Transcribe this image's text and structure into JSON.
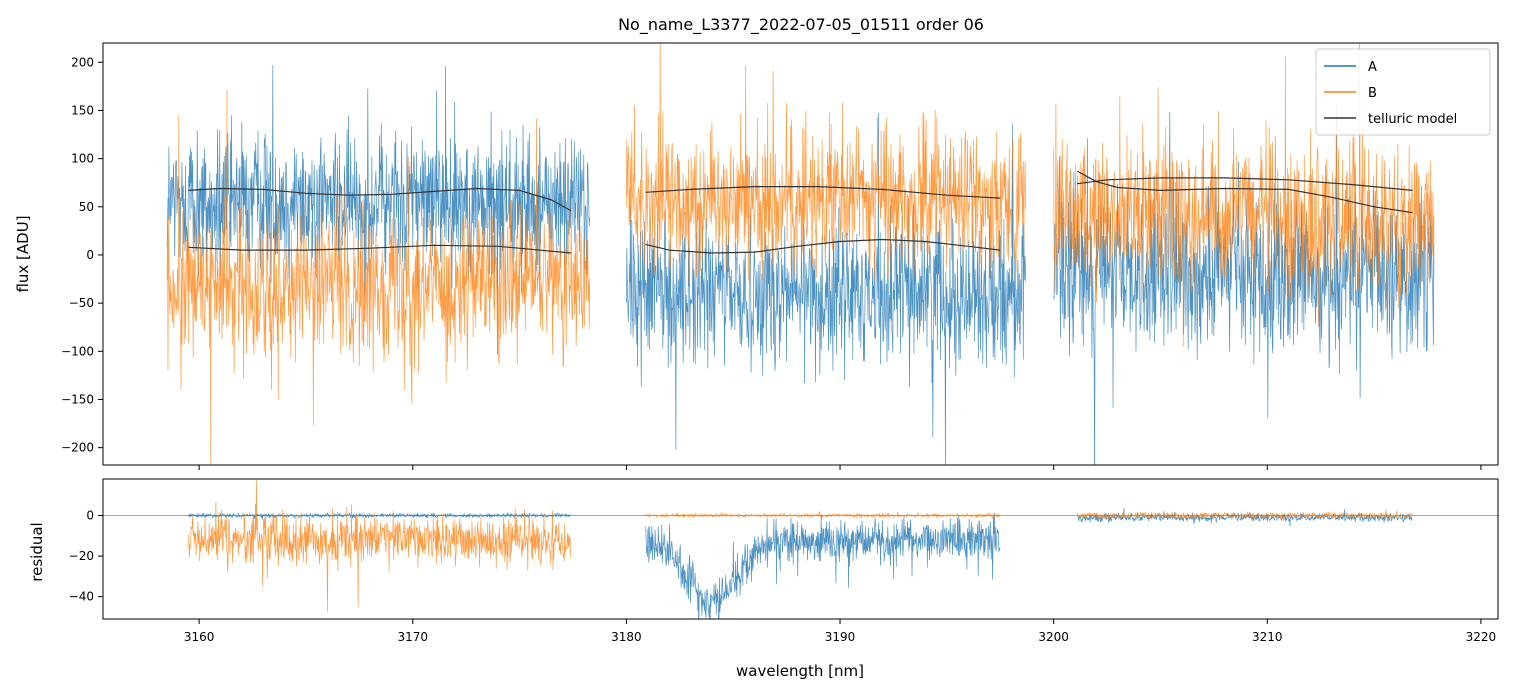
{
  "chart_data": {
    "type": "line",
    "title": "No_name_L3377_2022-07-05_01511  order 06",
    "xlabel": "wavelength [nm]",
    "xlim": [
      3155.5,
      3220.8
    ],
    "xticks": [
      3160,
      3170,
      3180,
      3190,
      3200,
      3210,
      3220
    ],
    "xtick_labels": [
      "3160",
      "3170",
      "3180",
      "3190",
      "3200",
      "3210",
      "3220"
    ],
    "colors": {
      "A": "#1f77b4",
      "B": "#ff7f0e",
      "telluric": "#333333",
      "zero": "#888888"
    },
    "legend": {
      "position": "upper right",
      "entries": [
        "A",
        "B",
        "telluric model"
      ]
    },
    "panels": [
      {
        "name": "flux",
        "ylabel": "flux [ADU]",
        "ylim": [
          -218,
          220
        ],
        "yticks": [
          200,
          150,
          100,
          50,
          0,
          -50,
          -100,
          -150,
          -200
        ],
        "ytick_labels": [
          "200",
          "150",
          "100",
          "50",
          "0",
          "−50",
          "−100",
          "−150",
          "−200"
        ],
        "segments": [
          {
            "x_start": 3158.5,
            "x_end": 3178.3,
            "A": {
              "center": 55,
              "spread": 105
            },
            "B": {
              "center": -30,
              "spread": 110
            }
          },
          {
            "x_start": 3180.0,
            "x_end": 3198.7,
            "A": {
              "center": -40,
              "spread": 110
            },
            "B": {
              "center": 60,
              "spread": 110
            }
          },
          {
            "x_start": 3200.0,
            "x_end": 3217.8,
            "A": {
              "center": -20,
              "spread": 120
            },
            "B": {
              "center": 40,
              "spread": 115
            }
          }
        ],
        "telluric": [
          {
            "x": [
              3159.5,
              3161,
              3163,
              3165,
              3167,
              3169,
              3171,
              3173,
              3175,
              3176.5,
              3177.4
            ],
            "y": [
              67,
              69,
              68,
              64,
              62,
              63,
              66,
              69,
              67,
              57,
              46
            ]
          },
          {
            "x": [
              3159.5,
              3162,
              3165,
              3168,
              3171,
              3174,
              3177.4
            ],
            "y": [
              8,
              5,
              5,
              7,
              10,
              9,
              2
            ]
          },
          {
            "x": [
              3180.9,
              3183,
              3186,
              3189,
              3192,
              3195,
              3197.5
            ],
            "y": [
              65,
              68,
              71,
              71,
              68,
              62,
              59
            ]
          },
          {
            "x": [
              3180.9,
              3182,
              3184,
              3186,
              3188,
              3190,
              3192,
              3194,
              3196,
              3197.5
            ],
            "y": [
              11,
              5,
              2,
              3,
              9,
              14,
              16,
              14,
              9,
              5
            ]
          },
          {
            "x": [
              3201.1,
              3202.5,
              3205,
              3208,
              3211,
              3214,
              3216.8
            ],
            "y": [
              74,
              78,
              80,
              80,
              78,
              73,
              67
            ]
          },
          {
            "x": [
              3201.1,
              3202,
              3203,
              3205,
              3208,
              3211,
              3213,
              3215,
              3216.8
            ],
            "y": [
              87,
              76,
              70,
              67,
              69,
              68,
              60,
              50,
              44
            ]
          }
        ]
      },
      {
        "name": "residual",
        "ylabel": "residual",
        "ylim": [
          -51,
          18
        ],
        "yticks": [
          0,
          -20,
          -40
        ],
        "ytick_labels": [
          "0",
          "−20",
          "−40"
        ],
        "zero_line": true,
        "segments": [
          {
            "x_start": 3159.5,
            "x_end": 3177.4,
            "A": {
              "center": 0,
              "spread": 1.5
            },
            "B": {
              "center": -12,
              "spread": 18
            }
          },
          {
            "x_start": 3180.9,
            "x_end": 3197.5,
            "A": {
              "center": -12,
              "spread": 16
            },
            "B": {
              "center": 0,
              "spread": 1.2
            }
          },
          {
            "x_start": 3201.1,
            "x_end": 3216.8,
            "A": {
              "center": -1,
              "spread": 3
            },
            "B": {
              "center": 0,
              "spread": 2
            }
          }
        ]
      }
    ]
  }
}
